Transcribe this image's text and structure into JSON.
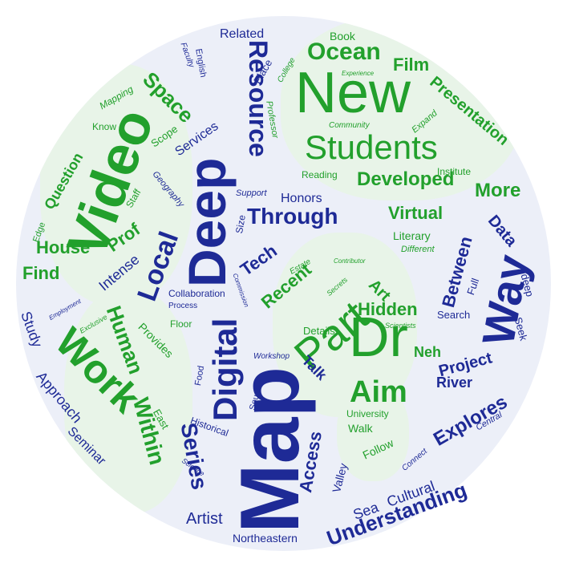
{
  "colors": {
    "green": "#22a02c",
    "blue": "#1e2a96",
    "background": "#eceff8",
    "highlight": "#e8f4e8"
  },
  "words": {
    "map": "Map",
    "new": "New",
    "students": "Students",
    "video": "Video",
    "deep": "Deep",
    "way": "Way",
    "dr": "Dr",
    "part": "Part",
    "work": "Work",
    "digital": "Digital",
    "resource": "Resource",
    "ocean": "Ocean",
    "aim": "Aim",
    "local": "Local",
    "developed": "Developed",
    "more": "More",
    "through": "Through",
    "understanding": "Understanding",
    "series": "Series",
    "human": "Human",
    "within": "Within",
    "explores": "Explores",
    "access": "Access",
    "space": "Space",
    "presentation": "Presentation",
    "film": "Film",
    "virtual": "Virtual",
    "recent": "Recent",
    "hidden": "Hidden",
    "tech": "Tech",
    "between": "Between",
    "project": "Project",
    "house": "House",
    "find": "Find",
    "prof": "Prof",
    "question": "Question",
    "related": "Related",
    "book": "Book",
    "artist": "Artist",
    "northeastern": "Northeastern",
    "sea": "Sea",
    "cultural": "Cultural",
    "talk": "Talk",
    "river": "River",
    "neh": "Neh",
    "art": "Art",
    "data": "Data",
    "study": "Study",
    "approach": "Approach",
    "seminar": "Seminar",
    "intense": "Intense",
    "services": "Services",
    "honors": "Honors",
    "literary": "Literary",
    "follow": "Follow",
    "walk": "Walk",
    "university": "University",
    "valley": "Valley",
    "details": "Details",
    "search": "Search",
    "seek": "Seek",
    "deep_lower": "deep",
    "full": "Full",
    "place": "Place",
    "english": "English",
    "faculty": "Faculty",
    "college": "College",
    "mapping": "Mapping",
    "know": "Know",
    "scope": "Scope",
    "edge": "Edge",
    "staff": "Staff",
    "geography": "Geography",
    "support": "Support",
    "size": "Size",
    "institute": "Institute",
    "reading": "Reading",
    "community": "Community",
    "expand": "Expand",
    "experience": "Experience",
    "professor": "Professor",
    "different": "Different",
    "estate": "Estate",
    "contributor": "Contributor",
    "secrets": "Secrets",
    "commission": "Commission",
    "collaboration": "Collaboration",
    "process": "Process",
    "employment": "Employment",
    "exclusive": "Exclusive",
    "provides": "Provides",
    "floor": "Floor",
    "workshop": "Workshop",
    "food": "Food",
    "sound": "Sound",
    "historical": "Historical",
    "east": "East",
    "science": "Science",
    "connect": "Connect",
    "central": "Central",
    "scientists": "Scientists"
  }
}
